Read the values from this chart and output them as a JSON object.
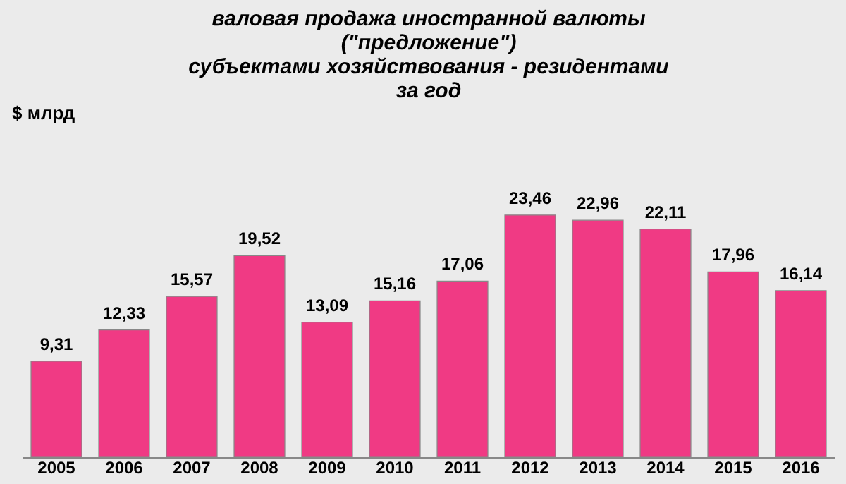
{
  "chart_data": {
    "type": "bar",
    "title": "валовая продажа иностранной валюты\n(\"предложение\")\nсубъектами хозяйствования - резидентами\nза год",
    "ylabel": "$ млрд",
    "categories": [
      "2005",
      "2006",
      "2007",
      "2008",
      "2009",
      "2010",
      "2011",
      "2012",
      "2013",
      "2014",
      "2015",
      "2016"
    ],
    "values": [
      9.31,
      12.33,
      15.57,
      19.52,
      13.09,
      15.16,
      17.06,
      23.46,
      22.96,
      22.11,
      17.96,
      16.14
    ],
    "value_labels": [
      "9,31",
      "12,33",
      "15,57",
      "19,52",
      "13,09",
      "15,16",
      "17,06",
      "23,46",
      "22,96",
      "22,11",
      "17,96",
      "16,14"
    ],
    "color": "#f03a84",
    "grid": false
  }
}
